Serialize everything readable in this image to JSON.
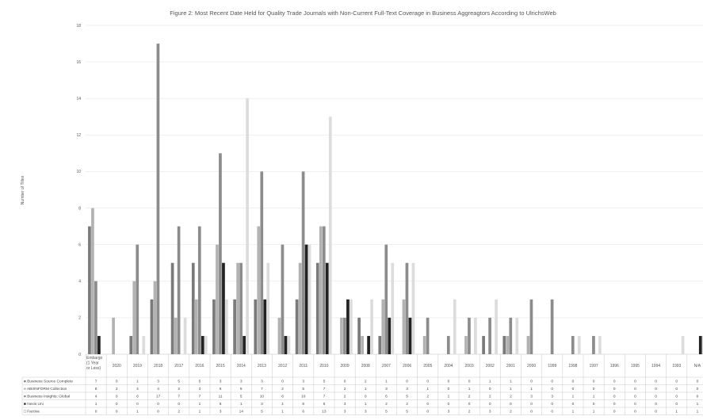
{
  "chart_data": {
    "type": "bar",
    "title": "Figure 2: Most Recent Date Held for Quality Trade Journals with Non-Current Full-Text Coverage in Business Aggreagtors According to UlrichsWeb",
    "ylabel": "Number of Titles",
    "xlabel": "",
    "ylim": [
      0,
      18
    ],
    "yticks": [
      0,
      2,
      4,
      6,
      8,
      10,
      12,
      14,
      16,
      18
    ],
    "grid": true,
    "legend": "data table",
    "categories": [
      "Embargo (1 Year or Less)",
      "2020",
      "2019",
      "2018",
      "2017",
      "2016",
      "2015",
      "2014",
      "2013",
      "2012",
      "2011",
      "2010",
      "2009",
      "2008",
      "2007",
      "2006",
      "2005",
      "2004",
      "2003",
      "2002",
      "2001",
      "2000",
      "1999",
      "1998",
      "1997",
      "1996",
      "1995",
      "1994",
      "1993",
      "N/A"
    ],
    "series": [
      {
        "name": "Business Source Complete",
        "color": "#7a7a7a",
        "marker": "■",
        "values": [
          7,
          0,
          1,
          3,
          5,
          5,
          3,
          3,
          3,
          0,
          3,
          5,
          0,
          2,
          1,
          0,
          0,
          0,
          0,
          1,
          1,
          0,
          0,
          0,
          0,
          0,
          0,
          0,
          0,
          0
        ]
      },
      {
        "name": "ABI/INFORM Collection",
        "color": "#b2b2b2",
        "marker": "■",
        "values": [
          8,
          2,
          4,
          4,
          2,
          3,
          6,
          5,
          7,
          2,
          5,
          7,
          2,
          1,
          3,
          3,
          1,
          0,
          1,
          0,
          1,
          1,
          0,
          0,
          0,
          0,
          0,
          0,
          0,
          0
        ]
      },
      {
        "name": "Business Insights: Global",
        "color": "#8c8c8c",
        "marker": "■",
        "values": [
          4,
          0,
          6,
          17,
          7,
          7,
          11,
          5,
          10,
          6,
          10,
          7,
          2,
          0,
          6,
          5,
          2,
          1,
          2,
          2,
          2,
          3,
          3,
          1,
          1,
          0,
          0,
          0,
          0,
          0
        ]
      },
      {
        "name": "Nexis Uni",
        "color": "#222222",
        "marker": "■",
        "values": [
          1,
          0,
          0,
          0,
          0,
          1,
          5,
          1,
          3,
          1,
          6,
          5,
          3,
          1,
          2,
          2,
          0,
          0,
          0,
          0,
          0,
          0,
          0,
          0,
          0,
          0,
          0,
          0,
          0,
          1
        ]
      },
      {
        "name": "Factiva",
        "color": "#dcdcdc",
        "marker": "□",
        "values": [
          0,
          0,
          1,
          0,
          2,
          1,
          3,
          14,
          5,
          1,
          6,
          13,
          3,
          3,
          5,
          5,
          0,
          3,
          2,
          3,
          2,
          0,
          0,
          1,
          1,
          0,
          0,
          0,
          1,
          1
        ]
      }
    ]
  }
}
